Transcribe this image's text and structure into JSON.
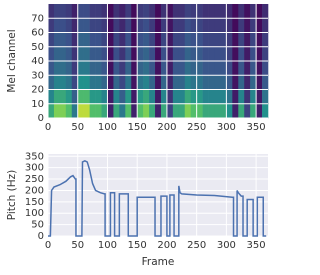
{
  "chart_data": [
    {
      "type": "heatmap",
      "y_label": "Mel channel",
      "colormap": "viridis",
      "grid": true,
      "xlim": [
        0,
        370
      ],
      "ylim": [
        0,
        80
      ],
      "xticks": [
        0,
        50,
        100,
        150,
        200,
        250,
        300,
        350
      ],
      "yticks": [
        0,
        10,
        20,
        30,
        40,
        50,
        60,
        70
      ],
      "zlim": [
        0,
        1
      ],
      "z": [
        [
          0.6,
          0.8,
          0.8,
          0.7,
          0.4,
          0.9,
          0.9,
          0.7,
          0.7,
          0.6,
          0.1,
          0.6,
          0.4,
          0.7,
          0.1,
          0.7,
          0.8,
          0.6,
          0.1,
          0.6,
          0.2,
          0.6,
          0.6,
          0.8,
          0.7,
          0.7,
          0.6,
          0.6,
          0.6,
          0.6,
          0.5,
          0.1,
          0.6,
          0.2,
          0.6,
          0.1,
          0.5
        ],
        [
          0.45,
          0.6,
          0.6,
          0.53,
          0.3,
          0.68,
          0.68,
          0.53,
          0.53,
          0.45,
          0.08,
          0.45,
          0.3,
          0.53,
          0.08,
          0.53,
          0.6,
          0.45,
          0.08,
          0.45,
          0.15,
          0.45,
          0.45,
          0.6,
          0.53,
          0.53,
          0.45,
          0.45,
          0.45,
          0.45,
          0.38,
          0.08,
          0.45,
          0.15,
          0.45,
          0.08,
          0.38
        ],
        [
          0.33,
          0.44,
          0.44,
          0.39,
          0.22,
          0.5,
          0.5,
          0.39,
          0.39,
          0.33,
          0.06,
          0.33,
          0.22,
          0.39,
          0.06,
          0.39,
          0.44,
          0.33,
          0.06,
          0.33,
          0.11,
          0.33,
          0.33,
          0.44,
          0.39,
          0.39,
          0.33,
          0.33,
          0.33,
          0.33,
          0.28,
          0.06,
          0.33,
          0.11,
          0.33,
          0.06,
          0.28
        ],
        [
          0.27,
          0.36,
          0.36,
          0.32,
          0.18,
          0.41,
          0.41,
          0.32,
          0.32,
          0.27,
          0.05,
          0.27,
          0.18,
          0.32,
          0.05,
          0.32,
          0.36,
          0.27,
          0.05,
          0.27,
          0.09,
          0.27,
          0.27,
          0.36,
          0.32,
          0.32,
          0.27,
          0.27,
          0.27,
          0.27,
          0.23,
          0.05,
          0.27,
          0.09,
          0.27,
          0.05,
          0.23
        ],
        [
          0.24,
          0.32,
          0.32,
          0.28,
          0.16,
          0.36,
          0.36,
          0.28,
          0.28,
          0.24,
          0.04,
          0.24,
          0.16,
          0.28,
          0.04,
          0.28,
          0.32,
          0.24,
          0.04,
          0.24,
          0.08,
          0.24,
          0.24,
          0.32,
          0.28,
          0.28,
          0.24,
          0.24,
          0.24,
          0.24,
          0.2,
          0.04,
          0.24,
          0.08,
          0.24,
          0.04,
          0.2
        ],
        [
          0.21,
          0.28,
          0.28,
          0.25,
          0.14,
          0.32,
          0.32,
          0.25,
          0.25,
          0.21,
          0.04,
          0.21,
          0.14,
          0.25,
          0.04,
          0.25,
          0.28,
          0.21,
          0.04,
          0.21,
          0.07,
          0.21,
          0.21,
          0.28,
          0.25,
          0.25,
          0.21,
          0.21,
          0.21,
          0.21,
          0.18,
          0.04,
          0.21,
          0.07,
          0.21,
          0.04,
          0.18
        ],
        [
          0.18,
          0.24,
          0.24,
          0.21,
          0.12,
          0.27,
          0.27,
          0.21,
          0.21,
          0.18,
          0.03,
          0.18,
          0.12,
          0.21,
          0.03,
          0.21,
          0.24,
          0.18,
          0.03,
          0.18,
          0.06,
          0.18,
          0.18,
          0.24,
          0.21,
          0.21,
          0.18,
          0.18,
          0.18,
          0.18,
          0.15,
          0.03,
          0.18,
          0.06,
          0.18,
          0.03,
          0.15
        ],
        [
          0.15,
          0.2,
          0.2,
          0.18,
          0.1,
          0.23,
          0.23,
          0.18,
          0.18,
          0.15,
          0.03,
          0.15,
          0.1,
          0.18,
          0.03,
          0.18,
          0.2,
          0.15,
          0.03,
          0.15,
          0.05,
          0.15,
          0.15,
          0.2,
          0.18,
          0.18,
          0.15,
          0.15,
          0.15,
          0.15,
          0.13,
          0.03,
          0.15,
          0.05,
          0.15,
          0.03,
          0.13
        ]
      ]
    },
    {
      "type": "line",
      "x_label": "Frame",
      "y_label": "Pitch (Hz)",
      "color": "#4c72b0",
      "grid": true,
      "xlim": [
        0,
        370
      ],
      "ylim": [
        0,
        360
      ],
      "xticks": [
        0,
        50,
        100,
        150,
        200,
        250,
        300,
        350
      ],
      "yticks": [
        0,
        50,
        100,
        150,
        200,
        250,
        300,
        350
      ],
      "x": [
        0,
        4,
        6,
        10,
        20,
        30,
        38,
        42,
        46,
        47,
        47,
        57,
        58,
        62,
        66,
        70,
        75,
        80,
        88,
        95,
        96,
        96,
        105,
        105,
        112,
        112,
        120,
        120,
        135,
        135,
        150,
        150,
        180,
        180,
        190,
        190,
        200,
        200,
        205,
        205,
        212,
        212,
        220,
        220,
        222,
        225,
        250,
        280,
        310,
        312,
        312,
        318,
        318,
        320,
        325,
        328,
        328,
        335,
        335,
        345,
        345,
        352,
        352,
        362,
        362,
        367
      ],
      "values": [
        0,
        0,
        200,
        215,
        225,
        240,
        260,
        265,
        250,
        250,
        0,
        0,
        325,
        330,
        325,
        290,
        230,
        200,
        190,
        185,
        185,
        0,
        0,
        190,
        190,
        0,
        0,
        185,
        185,
        0,
        0,
        170,
        170,
        0,
        0,
        175,
        175,
        0,
        0,
        180,
        180,
        0,
        0,
        220,
        190,
        185,
        180,
        178,
        170,
        170,
        0,
        0,
        200,
        190,
        175,
        175,
        0,
        0,
        160,
        160,
        0,
        0,
        170,
        170,
        0,
        0
      ]
    }
  ]
}
